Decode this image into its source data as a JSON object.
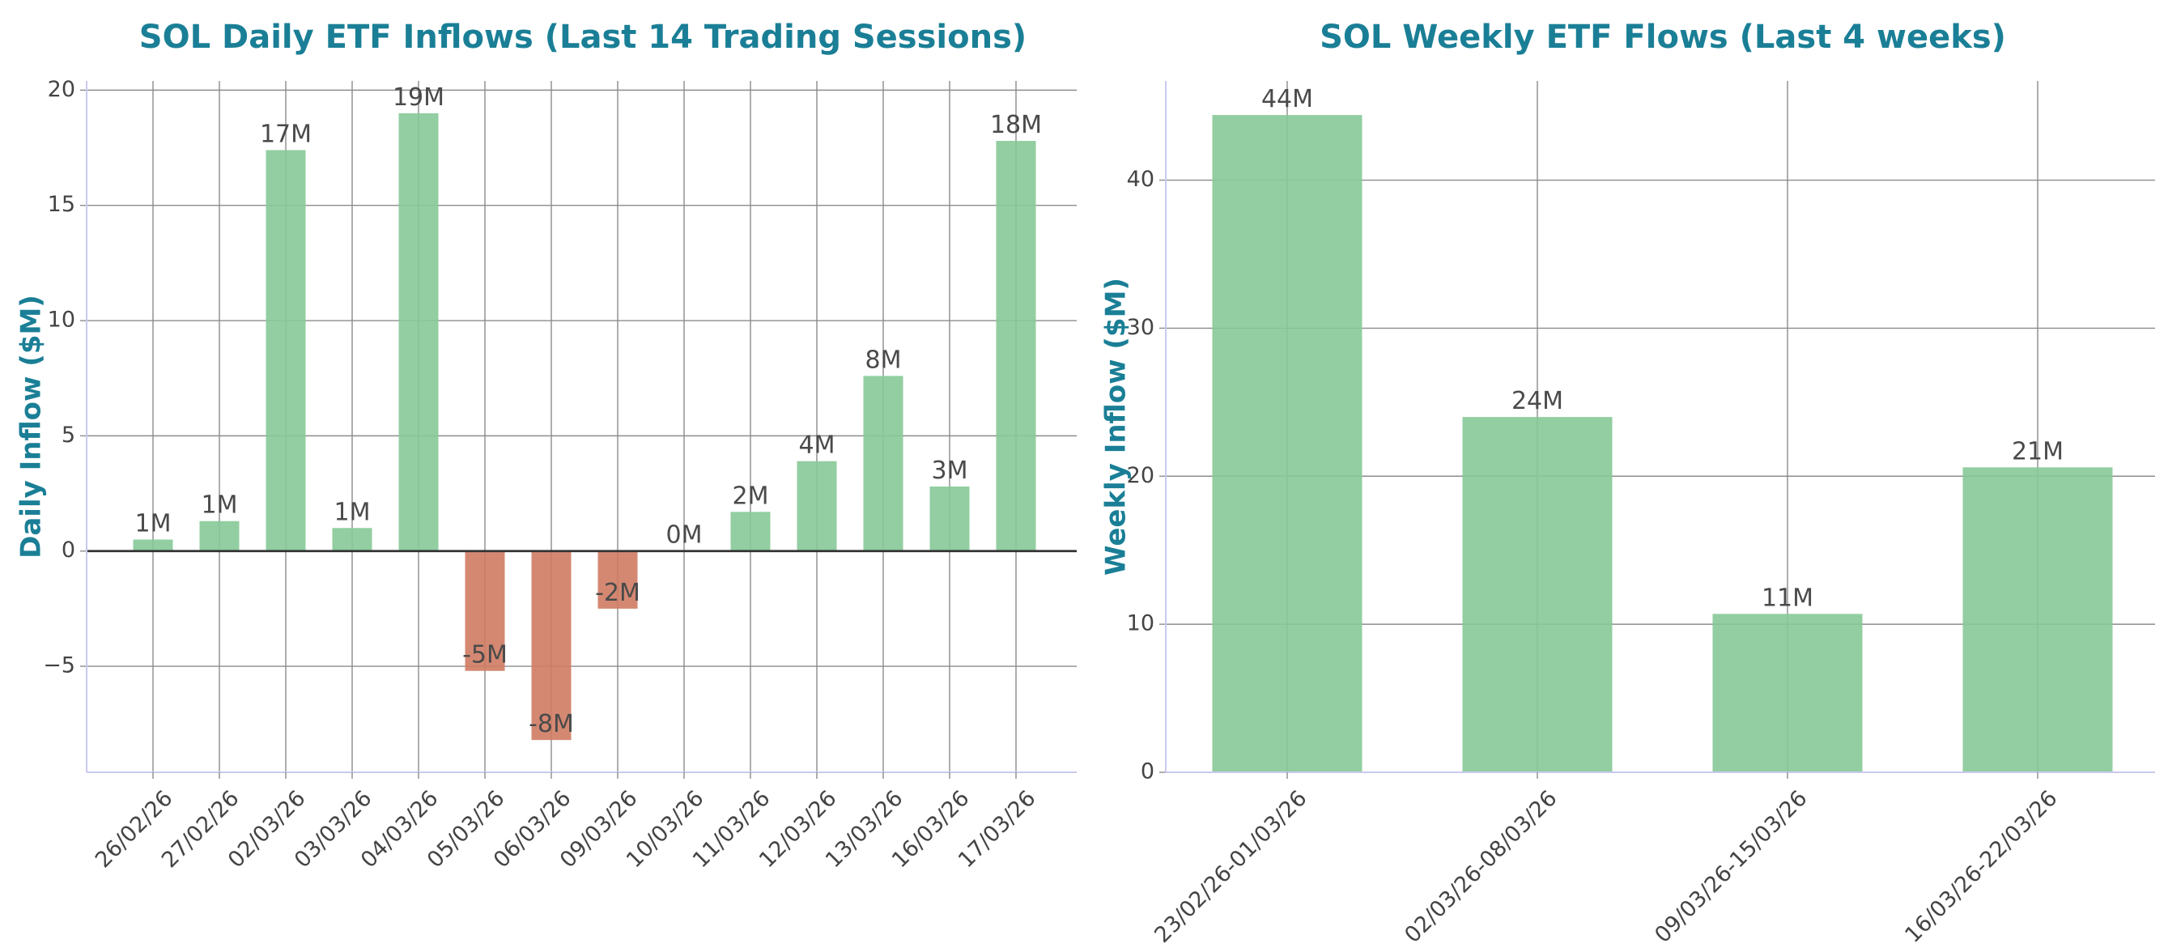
{
  "colors": {
    "title": "#1a7f96",
    "positive": "#86c997",
    "negative": "#cf7b63",
    "grid": "#8c8c8c",
    "zero_line": "#333333",
    "axis": "#c9c9ee",
    "text": "#444444"
  },
  "chart_data": [
    {
      "type": "bar",
      "title": "SOL Daily ETF Inflows (Last 14 Trading Sessions)",
      "xlabel": "",
      "ylabel": "Daily Inflow ($M)",
      "categories": [
        "26/02/26",
        "27/02/26",
        "02/03/26",
        "03/03/26",
        "04/03/26",
        "05/03/26",
        "06/03/26",
        "09/03/26",
        "10/03/26",
        "11/03/26",
        "12/03/26",
        "13/03/26",
        "16/03/26",
        "17/03/26"
      ],
      "values": [
        0.5,
        1.3,
        17.4,
        1.0,
        19.0,
        -5.2,
        -8.2,
        -2.5,
        0.0,
        1.7,
        3.9,
        7.6,
        2.8,
        17.8
      ],
      "labels": [
        "1M",
        "1M",
        "17M",
        "1M",
        "19M",
        "-5M",
        "-8M",
        "-2M",
        "0M",
        "2M",
        "4M",
        "8M",
        "3M",
        "18M"
      ],
      "ylim": [
        -9.6,
        20.4
      ],
      "yticks": [
        -5,
        0,
        5,
        10,
        15,
        20
      ],
      "ytick_labels": [
        "−5",
        "0",
        "5",
        "10",
        "15",
        "20"
      ],
      "grid": true,
      "legend": "none"
    },
    {
      "type": "bar",
      "title": "SOL Weekly ETF Flows (Last 4 weeks)",
      "xlabel": "",
      "ylabel": "Weekly Inflow ($M)",
      "categories": [
        "23/02/26-01/03/26",
        "02/03/26-08/03/26",
        "09/03/26-15/03/26",
        "16/03/26-22/03/26"
      ],
      "values": [
        44.4,
        24.0,
        10.7,
        20.6
      ],
      "labels": [
        "44M",
        "24M",
        "11M",
        "21M"
      ],
      "ylim": [
        0,
        46.7
      ],
      "yticks": [
        0,
        10,
        20,
        30,
        40
      ],
      "ytick_labels": [
        "0",
        "10",
        "20",
        "30",
        "40"
      ],
      "grid": true,
      "legend": "none"
    }
  ]
}
